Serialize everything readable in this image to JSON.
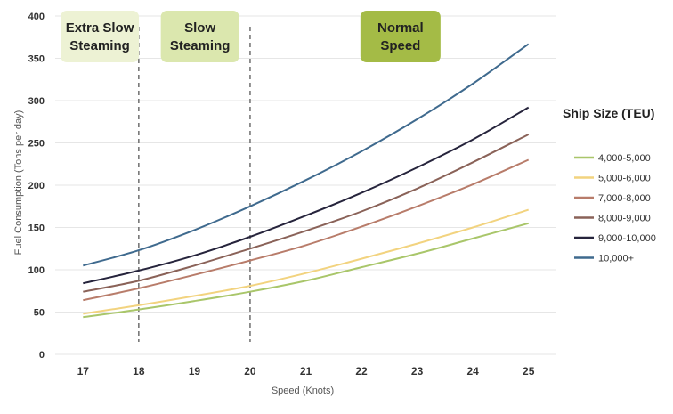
{
  "chart_data": {
    "type": "line",
    "xlabel": "Speed (Knots)",
    "ylabel": "Fuel Consumption (Tons per day)",
    "x": [
      17,
      18,
      19,
      20,
      21,
      22,
      23,
      24,
      25
    ],
    "xlim": [
      16.5,
      25.5
    ],
    "ylim": [
      0,
      400
    ],
    "yticks": [
      0,
      50,
      100,
      150,
      200,
      250,
      300,
      350,
      400
    ],
    "grid": "horizontal",
    "legend": {
      "title": "Ship Size (TEU)",
      "placement": "right"
    },
    "series": [
      {
        "name": "4,000-5,000",
        "color": "#a9c66a",
        "values": [
          44,
          53,
          63,
          74,
          87,
          103,
          119,
          137,
          155
        ]
      },
      {
        "name": "5,000-6,000",
        "color": "#f2d37f",
        "values": [
          48,
          58,
          69,
          81,
          96,
          113,
          131,
          150,
          171
        ]
      },
      {
        "name": "7,000-8,000",
        "color": "#b87c6a",
        "values": [
          64,
          78,
          94,
          111,
          129,
          151,
          175,
          201,
          230
        ]
      },
      {
        "name": "8,000-9,000",
        "color": "#8a6258",
        "values": [
          74,
          87,
          105,
          125,
          146,
          169,
          196,
          227,
          260
        ]
      },
      {
        "name": "9,000-10,000",
        "color": "#26243c",
        "values": [
          84,
          99,
          117,
          139,
          164,
          191,
          221,
          254,
          292
        ]
      },
      {
        "name": "10,000+",
        "color": "#3f6a8e",
        "values": [
          105,
          123,
          147,
          175,
          206,
          240,
          278,
          320,
          367
        ]
      }
    ],
    "annotations": {
      "dividers": [
        18,
        20
      ],
      "zones": [
        {
          "label_line1": "Extra Slow",
          "label_line2": "Steaming",
          "center_x": 17.3,
          "fill": "#edf2d4"
        },
        {
          "label_line1": "Slow",
          "label_line2": "Steaming",
          "center_x": 19.1,
          "fill": "#dbe7ae"
        },
        {
          "label_line1": "Normal",
          "label_line2": "Speed",
          "center_x": 22.7,
          "fill": "#a4bb46"
        }
      ]
    }
  }
}
